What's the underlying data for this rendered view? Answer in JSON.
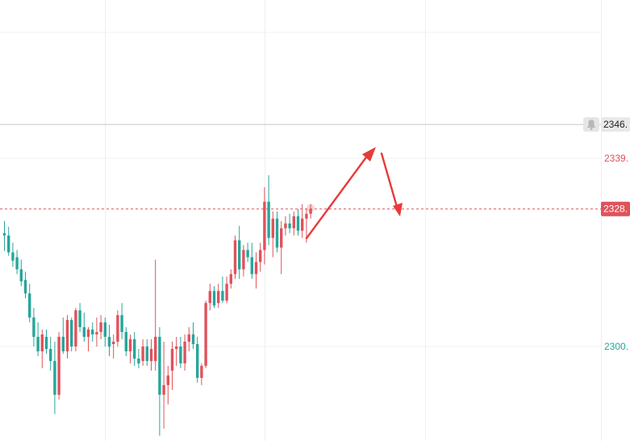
{
  "chart_data": {
    "type": "candlestick",
    "y_axis": {
      "position": "right",
      "tick_labels": [
        {
          "text": "2339.",
          "value": 2339,
          "color": "#e0525b"
        },
        {
          "text": "2300.",
          "value": 2300,
          "color": "#26a69a"
        }
      ]
    },
    "price_lines": [
      {
        "text": "2346.",
        "value": 2346,
        "style": "solid",
        "line_color": "#c7c7c7",
        "label_bg": "#e9e9e9",
        "label_color": "#222222",
        "has_bell": true
      },
      {
        "text": "2328.",
        "value": 2328.5,
        "style": "dashed",
        "line_color": "#e0525b",
        "label_bg": "#e0525b",
        "label_color": "#ffffff"
      }
    ],
    "colors": {
      "up": "#e0525b",
      "down": "#26a69a",
      "grid": "#f0f0f4",
      "arrow": "#e83a3a"
    },
    "candles": [
      [
        2323.5,
        2326.0,
        2319.8,
        2323.0
      ],
      [
        2323.0,
        2324.8,
        2318.8,
        2319.5
      ],
      [
        2319.5,
        2321.5,
        2316.5,
        2317.8
      ],
      [
        2318.5,
        2320.0,
        2315.0,
        2316.0
      ],
      [
        2316.0,
        2318.0,
        2312.5,
        2313.5
      ],
      [
        2313.8,
        2315.5,
        2310.0,
        2311.0
      ],
      [
        2311.0,
        2313.0,
        2305.0,
        2306.0
      ],
      [
        2306.0,
        2308.0,
        2300.0,
        2302.0
      ],
      [
        2302.0,
        2305.0,
        2298.0,
        2299.0
      ],
      [
        2299.0,
        2303.5,
        2295.5,
        2302.5
      ],
      [
        2302.0,
        2303.5,
        2298.5,
        2299.5
      ],
      [
        2299.5,
        2302.0,
        2295.0,
        2297.0
      ],
      [
        2297.0,
        2301.0,
        2286.0,
        2290.0
      ],
      [
        2290.0,
        2303.0,
        2289.0,
        2302.0
      ],
      [
        2302.0,
        2306.0,
        2298.5,
        2299.0
      ],
      [
        2299.0,
        2306.5,
        2297.5,
        2305.5
      ],
      [
        2305.5,
        2306.0,
        2299.0,
        2300.0
      ],
      [
        2300.0,
        2308.0,
        2299.0,
        2307.5
      ],
      [
        2307.5,
        2309.0,
        2303.0,
        2304.0
      ],
      [
        2304.0,
        2307.0,
        2301.0,
        2302.0
      ],
      [
        2302.0,
        2304.0,
        2299.0,
        2303.5
      ],
      [
        2303.5,
        2305.0,
        2301.0,
        2302.5
      ],
      [
        2302.5,
        2306.0,
        2300.0,
        2303.0
      ],
      [
        2303.0,
        2306.5,
        2301.5,
        2305.0
      ],
      [
        2305.0,
        2306.0,
        2300.0,
        2302.0
      ],
      [
        2302.0,
        2304.5,
        2298.0,
        2300.0
      ],
      [
        2300.5,
        2302.5,
        2297.5,
        2301.0
      ],
      [
        2301.0,
        2307.5,
        2300.0,
        2306.5
      ],
      [
        2306.5,
        2309.0,
        2301.5,
        2303.0
      ],
      [
        2303.0,
        2304.0,
        2298.0,
        2299.0
      ],
      [
        2299.0,
        2302.5,
        2296.5,
        2301.5
      ],
      [
        2301.5,
        2303.0,
        2296.0,
        2297.5
      ],
      [
        2297.5,
        2299.5,
        2295.5,
        2296.5
      ],
      [
        2297.0,
        2301.5,
        2296.0,
        2300.0
      ],
      [
        2300.0,
        2301.5,
        2296.0,
        2297.0
      ],
      [
        2297.0,
        2301.5,
        2295.0,
        2299.5
      ],
      [
        2297.0,
        2318.0,
        2295.0,
        2302.0
      ],
      [
        2302.0,
        2304.0,
        2281.5,
        2290.0
      ],
      [
        2290.0,
        2301.0,
        2283.0,
        2292.0
      ],
      [
        2292.0,
        2296.0,
        2288.0,
        2294.0
      ],
      [
        2295.0,
        2301.0,
        2291.0,
        2299.5
      ],
      [
        2299.5,
        2302.0,
        2296.0,
        2300.0
      ],
      [
        2300.0,
        2302.0,
        2295.5,
        2296.5
      ],
      [
        2296.5,
        2302.5,
        2295.0,
        2301.0
      ],
      [
        2301.0,
        2304.0,
        2299.0,
        2302.5
      ],
      [
        2302.5,
        2305.0,
        2299.5,
        2300.5
      ],
      [
        2300.5,
        2302.0,
        2292.5,
        2293.5
      ],
      [
        2293.5,
        2296.5,
        2292.0,
        2296.0
      ],
      [
        2296.0,
        2309.5,
        2295.5,
        2309.0
      ],
      [
        2309.0,
        2313.0,
        2307.5,
        2311.5
      ],
      [
        2311.5,
        2312.5,
        2308.0,
        2308.5
      ],
      [
        2309.0,
        2313.0,
        2308.0,
        2311.5
      ],
      [
        2311.5,
        2314.5,
        2309.0,
        2309.5
      ],
      [
        2309.5,
        2314.5,
        2309.0,
        2313.0
      ],
      [
        2313.0,
        2316.0,
        2312.0,
        2315.0
      ],
      [
        2315.0,
        2323.0,
        2314.0,
        2322.0
      ],
      [
        2322.0,
        2325.0,
        2314.0,
        2316.0
      ],
      [
        2316.0,
        2321.0,
        2314.5,
        2320.0
      ],
      [
        2320.0,
        2321.5,
        2317.5,
        2318.5
      ],
      [
        2318.5,
        2321.5,
        2314.0,
        2315.0
      ],
      [
        2315.0,
        2319.5,
        2312.0,
        2317.5
      ],
      [
        2317.5,
        2321.5,
        2315.5,
        2320.0
      ],
      [
        2320.0,
        2333.0,
        2317.0,
        2330.0
      ],
      [
        2330.0,
        2335.5,
        2321.0,
        2322.5
      ],
      [
        2322.5,
        2328.0,
        2318.5,
        2326.5
      ],
      [
        2326.5,
        2328.0,
        2319.5,
        2320.5
      ],
      [
        2320.5,
        2326.0,
        2315.0,
        2324.5
      ],
      [
        2324.5,
        2327.0,
        2323.0,
        2325.5
      ],
      [
        2325.5,
        2327.5,
        2323.5,
        2324.5
      ],
      [
        2324.5,
        2328.0,
        2323.0,
        2327.0
      ],
      [
        2327.0,
        2328.5,
        2323.0,
        2324.0
      ],
      [
        2324.0,
        2329.5,
        2322.5,
        2326.5
      ],
      [
        2326.5,
        2328.5,
        2321.5,
        2327.5
      ],
      [
        2327.5,
        2329.5,
        2326.5,
        2328.5
      ]
    ]
  }
}
